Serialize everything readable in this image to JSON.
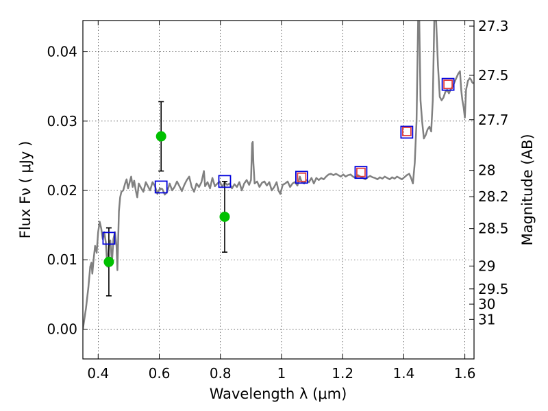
{
  "chart_data": {
    "type": "scatter",
    "xlabel": "Wavelength  λ (μm)",
    "ylabel": "Flux  Fν  ( μJy )",
    "ylabel2": "Magnitude (AB)",
    "xlim": [
      0.35,
      1.63
    ],
    "ylim": [
      -0.0043,
      0.0445
    ],
    "grid": true,
    "x_ticks": [
      {
        "value": 0.4,
        "label": "0.4"
      },
      {
        "value": 0.6,
        "label": "0.6"
      },
      {
        "value": 0.8,
        "label": "0.8"
      },
      {
        "value": 1.0,
        "label": "1"
      },
      {
        "value": 1.2,
        "label": "1.2"
      },
      {
        "value": 1.4,
        "label": "1.4"
      },
      {
        "value": 1.6,
        "label": "1.6"
      }
    ],
    "y_ticks": [
      {
        "value": 0.0,
        "label": "0.00"
      },
      {
        "value": 0.01,
        "label": "0.01"
      },
      {
        "value": 0.02,
        "label": "0.02"
      },
      {
        "value": 0.03,
        "label": "0.03"
      },
      {
        "value": 0.04,
        "label": "0.04"
      }
    ],
    "right_ticks": [
      {
        "label": "27.3",
        "flux": 0.0437
      },
      {
        "label": "27.5",
        "flux": 0.0366
      },
      {
        "label": "27.7",
        "flux": 0.0302
      },
      {
        "label": "28",
        "flux": 0.0229
      },
      {
        "label": "28.2",
        "flux": 0.0191
      },
      {
        "label": "28.5",
        "flux": 0.0145
      },
      {
        "label": "29",
        "flux": 0.0091
      },
      {
        "label": "29.5",
        "flux": 0.0058
      },
      {
        "label": "30",
        "flux": 0.0036
      },
      {
        "label": "31",
        "flux": 0.0014
      }
    ],
    "model_spectrum": {
      "color": "#808080",
      "points": [
        [
          0.35,
          0.0
        ],
        [
          0.36,
          0.003
        ],
        [
          0.368,
          0.006
        ],
        [
          0.374,
          0.009
        ],
        [
          0.378,
          0.0096
        ],
        [
          0.381,
          0.008
        ],
        [
          0.385,
          0.01
        ],
        [
          0.39,
          0.012
        ],
        [
          0.395,
          0.011
        ],
        [
          0.4,
          0.014
        ],
        [
          0.405,
          0.0155
        ],
        [
          0.41,
          0.0145
        ],
        [
          0.415,
          0.013
        ],
        [
          0.42,
          0.014
        ],
        [
          0.425,
          0.0125
        ],
        [
          0.43,
          0.009
        ],
        [
          0.435,
          0.012
        ],
        [
          0.44,
          0.0128
        ],
        [
          0.445,
          0.0095
        ],
        [
          0.45,
          0.013
        ],
        [
          0.455,
          0.014
        ],
        [
          0.46,
          0.012
        ],
        [
          0.463,
          0.0085
        ],
        [
          0.468,
          0.017
        ],
        [
          0.472,
          0.019
        ],
        [
          0.476,
          0.0198
        ],
        [
          0.482,
          0.02
        ],
        [
          0.488,
          0.021
        ],
        [
          0.493,
          0.0216
        ],
        [
          0.498,
          0.0203
        ],
        [
          0.503,
          0.0212
        ],
        [
          0.508,
          0.022
        ],
        [
          0.513,
          0.0205
        ],
        [
          0.518,
          0.0214
        ],
        [
          0.523,
          0.02
        ],
        [
          0.528,
          0.019
        ],
        [
          0.533,
          0.021
        ],
        [
          0.54,
          0.0204
        ],
        [
          0.548,
          0.0198
        ],
        [
          0.556,
          0.0212
        ],
        [
          0.563,
          0.0206
        ],
        [
          0.57,
          0.02
        ],
        [
          0.578,
          0.0212
        ],
        [
          0.586,
          0.0206
        ],
        [
          0.594,
          0.0195
        ],
        [
          0.602,
          0.0203
        ],
        [
          0.61,
          0.0202
        ],
        [
          0.618,
          0.0194
        ],
        [
          0.626,
          0.0198
        ],
        [
          0.634,
          0.021
        ],
        [
          0.642,
          0.02
        ],
        [
          0.65,
          0.0205
        ],
        [
          0.658,
          0.0213
        ],
        [
          0.666,
          0.0206
        ],
        [
          0.674,
          0.0199
        ],
        [
          0.682,
          0.0208
        ],
        [
          0.69,
          0.0215
        ],
        [
          0.698,
          0.022
        ],
        [
          0.706,
          0.0205
        ],
        [
          0.714,
          0.0198
        ],
        [
          0.722,
          0.021
        ],
        [
          0.73,
          0.0205
        ],
        [
          0.738,
          0.0212
        ],
        [
          0.746,
          0.0228
        ],
        [
          0.75,
          0.0206
        ],
        [
          0.758,
          0.0212
        ],
        [
          0.766,
          0.0203
        ],
        [
          0.774,
          0.0218
        ],
        [
          0.782,
          0.0206
        ],
        [
          0.79,
          0.021
        ],
        [
          0.798,
          0.0213
        ],
        [
          0.806,
          0.0205
        ],
        [
          0.814,
          0.0212
        ],
        [
          0.822,
          0.0208
        ],
        [
          0.83,
          0.021
        ],
        [
          0.838,
          0.0203
        ],
        [
          0.846,
          0.0209
        ],
        [
          0.854,
          0.0205
        ],
        [
          0.862,
          0.0212
        ],
        [
          0.87,
          0.02
        ],
        [
          0.878,
          0.021
        ],
        [
          0.886,
          0.0215
        ],
        [
          0.894,
          0.0208
        ],
        [
          0.9,
          0.0215
        ],
        [
          0.904,
          0.0268
        ],
        [
          0.906,
          0.027
        ],
        [
          0.908,
          0.024
        ],
        [
          0.912,
          0.021
        ],
        [
          0.92,
          0.0213
        ],
        [
          0.928,
          0.0205
        ],
        [
          0.936,
          0.0211
        ],
        [
          0.944,
          0.0213
        ],
        [
          0.952,
          0.0207
        ],
        [
          0.96,
          0.0212
        ],
        [
          0.968,
          0.02
        ],
        [
          0.976,
          0.0205
        ],
        [
          0.984,
          0.0212
        ],
        [
          0.99,
          0.02
        ],
        [
          0.996,
          0.0195
        ],
        [
          1.004,
          0.0208
        ],
        [
          1.012,
          0.021
        ],
        [
          1.02,
          0.0213
        ],
        [
          1.028,
          0.0205
        ],
        [
          1.036,
          0.021
        ],
        [
          1.044,
          0.0212
        ],
        [
          1.052,
          0.0207
        ],
        [
          1.06,
          0.022
        ],
        [
          1.066,
          0.0212
        ],
        [
          1.074,
          0.021
        ],
        [
          1.082,
          0.0215
        ],
        [
          1.09,
          0.0212
        ],
        [
          1.098,
          0.0218
        ],
        [
          1.106,
          0.021
        ],
        [
          1.114,
          0.0218
        ],
        [
          1.122,
          0.0215
        ],
        [
          1.13,
          0.0218
        ],
        [
          1.138,
          0.0216
        ],
        [
          1.146,
          0.022
        ],
        [
          1.154,
          0.0223
        ],
        [
          1.162,
          0.0224
        ],
        [
          1.17,
          0.0222
        ],
        [
          1.178,
          0.0224
        ],
        [
          1.186,
          0.0222
        ],
        [
          1.194,
          0.022
        ],
        [
          1.202,
          0.0223
        ],
        [
          1.21,
          0.022
        ],
        [
          1.218,
          0.0222
        ],
        [
          1.226,
          0.0223
        ],
        [
          1.234,
          0.022
        ],
        [
          1.242,
          0.0218
        ],
        [
          1.25,
          0.0222
        ],
        [
          1.258,
          0.022
        ],
        [
          1.266,
          0.0218
        ],
        [
          1.274,
          0.0216
        ],
        [
          1.282,
          0.0219
        ],
        [
          1.29,
          0.0221
        ],
        [
          1.298,
          0.0219
        ],
        [
          1.306,
          0.0218
        ],
        [
          1.314,
          0.0216
        ],
        [
          1.322,
          0.0219
        ],
        [
          1.33,
          0.0217
        ],
        [
          1.338,
          0.022
        ],
        [
          1.346,
          0.0218
        ],
        [
          1.354,
          0.0216
        ],
        [
          1.362,
          0.0219
        ],
        [
          1.37,
          0.0217
        ],
        [
          1.378,
          0.022
        ],
        [
          1.386,
          0.0218
        ],
        [
          1.394,
          0.0216
        ],
        [
          1.402,
          0.0219
        ],
        [
          1.41,
          0.0222
        ],
        [
          1.418,
          0.0224
        ],
        [
          1.424,
          0.0218
        ],
        [
          1.43,
          0.021
        ],
        [
          1.436,
          0.024
        ],
        [
          1.442,
          0.03
        ],
        [
          1.447,
          0.0445
        ],
        [
          1.451,
          0.0445
        ],
        [
          1.455,
          0.033
        ],
        [
          1.46,
          0.03
        ],
        [
          1.466,
          0.0275
        ],
        [
          1.472,
          0.028
        ],
        [
          1.478,
          0.0288
        ],
        [
          1.484,
          0.0292
        ],
        [
          1.49,
          0.0285
        ],
        [
          1.495,
          0.033
        ],
        [
          1.5,
          0.0445
        ],
        [
          1.506,
          0.0445
        ],
        [
          1.512,
          0.038
        ],
        [
          1.518,
          0.0335
        ],
        [
          1.524,
          0.033
        ],
        [
          1.53,
          0.0334
        ],
        [
          1.536,
          0.0342
        ],
        [
          1.542,
          0.0345
        ],
        [
          1.548,
          0.034
        ],
        [
          1.554,
          0.0346
        ],
        [
          1.56,
          0.035
        ],
        [
          1.566,
          0.0356
        ],
        [
          1.572,
          0.0362
        ],
        [
          1.578,
          0.0368
        ],
        [
          1.584,
          0.0372
        ],
        [
          1.588,
          0.0345
        ],
        [
          1.592,
          0.033
        ],
        [
          1.596,
          0.032
        ],
        [
          1.6,
          0.0305
        ],
        [
          1.604,
          0.0345
        ],
        [
          1.61,
          0.0358
        ],
        [
          1.616,
          0.0362
        ],
        [
          1.62,
          0.036
        ],
        [
          1.624,
          0.0356
        ],
        [
          1.628,
          0.0354
        ]
      ]
    },
    "series": [
      {
        "name": "",
        "marker": "circle",
        "color": "#00c000",
        "points": [
          {
            "x": 0.435,
            "y": 0.0097,
            "yerr_low": 0.0049,
            "yerr_high": 0.0049
          },
          {
            "x": 0.606,
            "y": 0.0278,
            "yerr_low": 0.005,
            "yerr_high": 0.005
          },
          {
            "x": 0.814,
            "y": 0.0162,
            "yerr_low": 0.0051,
            "yerr_high": 0.0051
          }
        ]
      },
      {
        "name": "",
        "marker": "square-open",
        "color": "#0000dd",
        "points": [
          {
            "x": 0.435,
            "y": 0.0131
          },
          {
            "x": 0.606,
            "y": 0.0205
          },
          {
            "x": 0.814,
            "y": 0.0213
          },
          {
            "x": 1.066,
            "y": 0.0219
          },
          {
            "x": 1.26,
            "y": 0.0226
          },
          {
            "x": 1.41,
            "y": 0.0284
          },
          {
            "x": 1.545,
            "y": 0.0353
          }
        ]
      },
      {
        "name": "",
        "marker": "square-open",
        "color": "#e04040",
        "points": [
          {
            "x": 1.066,
            "y": 0.0219
          },
          {
            "x": 1.26,
            "y": 0.0226
          },
          {
            "x": 1.41,
            "y": 0.0285
          },
          {
            "x": 1.545,
            "y": 0.0353
          }
        ]
      }
    ]
  }
}
